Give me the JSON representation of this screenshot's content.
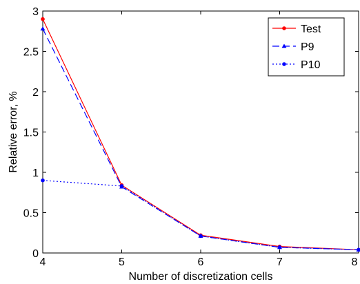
{
  "chart_data": {
    "type": "line",
    "xlabel": "Number of discretization cells",
    "ylabel": "Relative error, %",
    "xlim": [
      4,
      8
    ],
    "ylim": [
      0,
      3
    ],
    "xticks": [
      "4",
      "5",
      "6",
      "7",
      "8"
    ],
    "yticks": [
      "0",
      "0.5",
      "1",
      "1.5",
      "2",
      "2.5",
      "3"
    ],
    "grid": false,
    "legend_position": "top-right",
    "series": [
      {
        "name": "Test",
        "x": [
          4,
          5,
          6,
          7,
          8
        ],
        "y": [
          2.9,
          0.84,
          0.22,
          0.08,
          0.04
        ],
        "color": "#ff0000",
        "dash": "solid",
        "marker": "dot"
      },
      {
        "name": "P9",
        "x": [
          4,
          5,
          6,
          7,
          8
        ],
        "y": [
          2.78,
          0.82,
          0.21,
          0.07,
          0.04
        ],
        "color": "#0000ff",
        "dash": "dashed",
        "marker": "triangle"
      },
      {
        "name": "P10",
        "x": [
          4,
          5,
          6,
          7,
          8
        ],
        "y": [
          0.9,
          0.83,
          0.21,
          0.07,
          0.04
        ],
        "color": "#0000ff",
        "dash": "dotted",
        "marker": "dot"
      }
    ]
  }
}
